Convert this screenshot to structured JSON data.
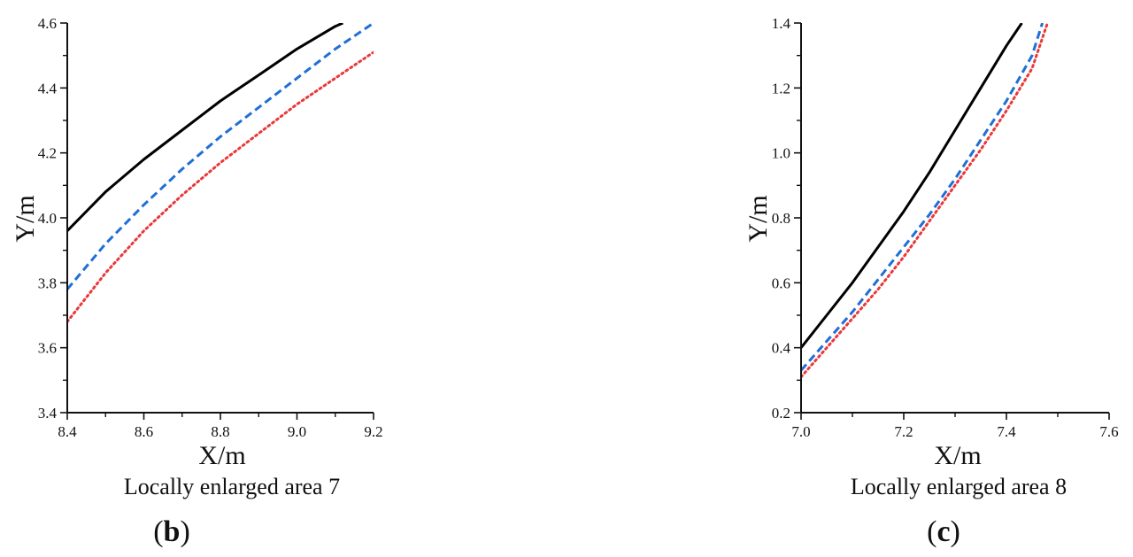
{
  "chart_data": [
    {
      "type": "line",
      "xlabel": "X/m",
      "ylabel": "Y/m",
      "caption": "Locally enlarged area 7",
      "panel_label": "b",
      "xlim": [
        8.4,
        9.2
      ],
      "ylim": [
        3.4,
        4.6
      ],
      "xticks": [
        "8.4",
        "8.6",
        "8.8",
        "9.0",
        "9.2"
      ],
      "yticks": [
        "3.4",
        "3.6",
        "3.8",
        "4.0",
        "4.2",
        "4.4",
        "4.6"
      ],
      "series": [
        {
          "style": "solid",
          "color": "#000000",
          "x": [
            8.4,
            8.5,
            8.6,
            8.7,
            8.8,
            8.9,
            9.0,
            9.1,
            9.12
          ],
          "y": [
            3.96,
            4.08,
            4.18,
            4.27,
            4.36,
            4.44,
            4.52,
            4.59,
            4.6
          ]
        },
        {
          "style": "dashed",
          "color": "#1f6fd6",
          "x": [
            8.4,
            8.5,
            8.6,
            8.7,
            8.8,
            8.9,
            9.0,
            9.1,
            9.2
          ],
          "y": [
            3.78,
            3.92,
            4.04,
            4.15,
            4.25,
            4.34,
            4.43,
            4.52,
            4.6
          ]
        },
        {
          "style": "dotted",
          "color": "#e8393b",
          "x": [
            8.4,
            8.5,
            8.6,
            8.7,
            8.8,
            8.9,
            9.0,
            9.1,
            9.2
          ],
          "y": [
            3.68,
            3.83,
            3.96,
            4.07,
            4.17,
            4.26,
            4.35,
            4.43,
            4.51
          ]
        }
      ]
    },
    {
      "type": "line",
      "xlabel": "X/m",
      "ylabel": "Y/m",
      "caption": "Locally enlarged area 8",
      "panel_label": "c",
      "xlim": [
        7.0,
        7.6
      ],
      "ylim": [
        0.2,
        1.4
      ],
      "xticks": [
        "7.0",
        "7.2",
        "7.4",
        "7.6"
      ],
      "yticks": [
        "0.2",
        "0.4",
        "0.6",
        "0.8",
        "1.0",
        "1.2",
        "1.4"
      ],
      "series": [
        {
          "style": "solid",
          "color": "#000000",
          "x": [
            7.0,
            7.05,
            7.1,
            7.15,
            7.2,
            7.25,
            7.3,
            7.35,
            7.4,
            7.43
          ],
          "y": [
            0.4,
            0.5,
            0.6,
            0.71,
            0.82,
            0.94,
            1.07,
            1.2,
            1.33,
            1.4
          ]
        },
        {
          "style": "dashed",
          "color": "#1f6fd6",
          "x": [
            7.0,
            7.05,
            7.1,
            7.15,
            7.2,
            7.25,
            7.3,
            7.35,
            7.4,
            7.45,
            7.47
          ],
          "y": [
            0.33,
            0.42,
            0.51,
            0.61,
            0.71,
            0.81,
            0.92,
            1.04,
            1.16,
            1.3,
            1.4
          ]
        },
        {
          "style": "dotted",
          "color": "#e8393b",
          "x": [
            7.0,
            7.05,
            7.1,
            7.15,
            7.2,
            7.25,
            7.3,
            7.35,
            7.4,
            7.45,
            7.48
          ],
          "y": [
            0.31,
            0.4,
            0.49,
            0.58,
            0.68,
            0.79,
            0.9,
            1.01,
            1.13,
            1.26,
            1.4
          ]
        }
      ]
    }
  ]
}
